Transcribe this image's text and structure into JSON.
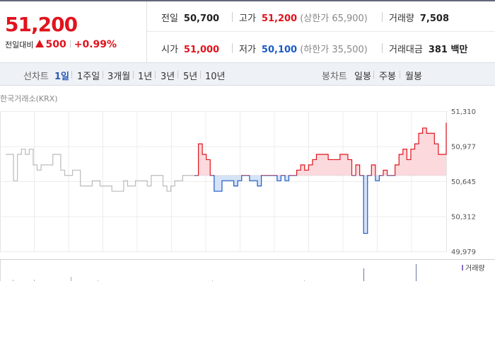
{
  "stock": {
    "price": "51,200",
    "change_label": "전일대비",
    "change": "500",
    "change_rate": "+0.99%"
  },
  "summary": {
    "prev_close": {
      "label": "전일",
      "value": "50,700"
    },
    "high": {
      "label": "고가",
      "value": "51,200",
      "limit_label": "(상한가 65,900)"
    },
    "volume": {
      "label": "거래량",
      "value": "7,508"
    },
    "open": {
      "label": "시가",
      "value": "51,000"
    },
    "low": {
      "label": "저가",
      "value": "50,100",
      "limit_label": "(하한가 35,500)"
    },
    "turnover": {
      "label": "거래대금",
      "value": "381 백만"
    }
  },
  "tabs": {
    "line_label": "선차트",
    "periods": [
      "1일",
      "1주일",
      "3개월",
      "1년",
      "3년",
      "5년",
      "10년"
    ],
    "active_period": "1일",
    "candle_label": "봉차트",
    "candles": [
      "일봉",
      "주봉",
      "월봉"
    ]
  },
  "chart_source": "한국거래소(KRX)",
  "colors": {
    "up": "#e1131c",
    "down": "#1c5ac8",
    "flat": "#bbbbbb",
    "volume_marker": "#8a6fc0"
  },
  "chart_data": {
    "type": "line",
    "ylim": [
      49979,
      51310
    ],
    "y_ticks": [
      "51,310",
      "50,977",
      "50,645",
      "50,312",
      "49,979"
    ],
    "baseline": 50700,
    "legend": "거래량",
    "series": [
      {
        "values": [
          50900,
          50900,
          50650,
          50900,
          50950,
          50900,
          50950,
          50800,
          50750,
          50800,
          50800,
          50800,
          50900,
          50900,
          50750,
          50700,
          50700,
          50750,
          50750,
          50600,
          50600,
          50600,
          50650,
          50650,
          50600,
          50600,
          50600,
          50550,
          50550,
          50550,
          50650,
          50600,
          50600,
          50650,
          50650,
          50650,
          50600,
          50700,
          50700,
          50700,
          50600,
          50550,
          50600,
          50650,
          50650,
          50700,
          50700,
          50700,
          50700,
          51000,
          50900,
          50850,
          50700,
          50550,
          50550,
          50650,
          50650,
          50650,
          50600,
          50650,
          50700,
          50700,
          50650,
          50650,
          50600,
          50700,
          50700,
          50700,
          50700,
          50650,
          50700,
          50650,
          50700,
          50700,
          50750,
          50800,
          50750,
          50800,
          50850,
          50900,
          50900,
          50900,
          50850,
          50850,
          50850,
          50900,
          50900,
          50850,
          50700,
          50800,
          50700,
          50150,
          50700,
          50800,
          50650,
          50700,
          50750,
          50700,
          50700,
          50800,
          50900,
          50950,
          50850,
          50950,
          51000,
          51100,
          51150,
          51100,
          51100,
          51000,
          50900,
          50900,
          51200
        ]
      }
    ]
  }
}
